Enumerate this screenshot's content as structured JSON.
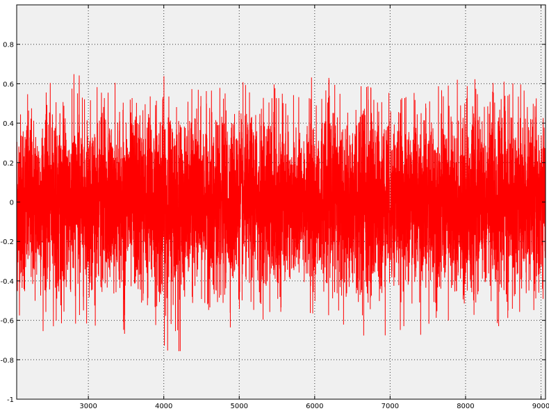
{
  "chart_data": {
    "type": "line",
    "title": "",
    "xlabel": "",
    "ylabel": "",
    "xlim": [
      2050,
      9060
    ],
    "ylim": [
      -1,
      1
    ],
    "x_ticks": [
      3000,
      4000,
      5000,
      6000,
      7000,
      8000,
      9000
    ],
    "y_ticks": [
      -1,
      -0.8,
      -0.6,
      -0.4,
      -0.2,
      0,
      0.2,
      0.4,
      0.6,
      0.8
    ],
    "x_tick_labels": [
      "3000",
      "4000",
      "5000",
      "6000",
      "7000",
      "8000",
      "9000"
    ],
    "y_tick_labels": [
      "-1",
      "-0.8",
      "-0.6",
      "-0.4",
      "-0.2",
      "0",
      "0.2",
      "0.4",
      "0.6",
      "0.8"
    ],
    "grid": true,
    "legend": "none",
    "series": [
      {
        "color": "#ff0000",
        "x_start": 2050,
        "x_end": 9060,
        "n_points": 7011,
        "description_envelope": {
          "x": [
            2050,
            2500,
            3000,
            3500,
            4000,
            4500,
            5000,
            5500,
            6000,
            6500,
            6700,
            7000,
            7500,
            8000,
            8500,
            9060
          ],
          "upper": [
            0.62,
            0.65,
            0.66,
            0.64,
            0.67,
            0.6,
            0.62,
            0.62,
            0.64,
            0.66,
            0.75,
            0.62,
            0.64,
            0.64,
            0.68,
            0.72
          ],
          "lower": [
            -0.74,
            -0.7,
            -0.68,
            -0.72,
            -0.84,
            -0.68,
            -0.7,
            -0.68,
            -0.68,
            -0.72,
            -0.78,
            -0.7,
            -0.7,
            -0.7,
            -0.66,
            -0.62
          ]
        }
      }
    ]
  },
  "colors": {
    "plot_background": "#f0f0f0",
    "series": "#ff0000",
    "grid": "#333333",
    "axes": "#000000"
  }
}
